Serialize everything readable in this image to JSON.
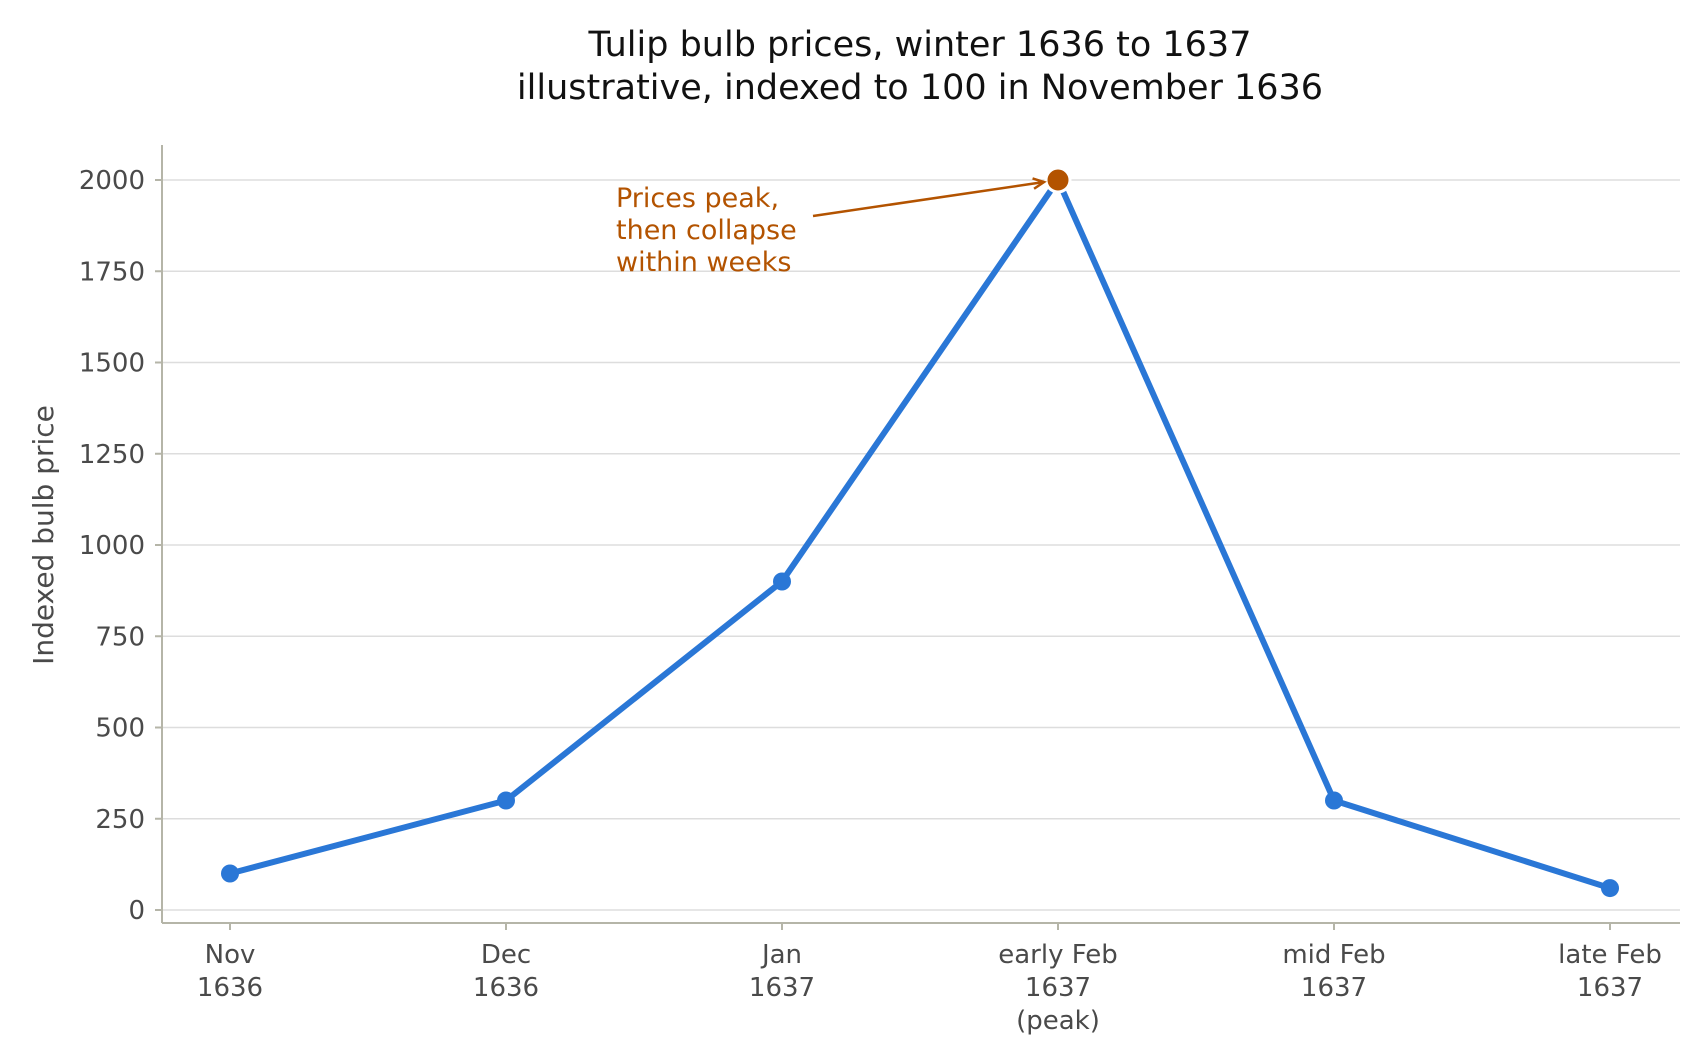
{
  "chart_data": {
    "type": "line",
    "title": "Tulip bulb prices, winter 1636 to 1637",
    "subtitle": "illustrative, indexed to 100 in November 1636",
    "xlabel": "",
    "ylabel": "Indexed bulb price",
    "categories": [
      [
        "Nov",
        "1636"
      ],
      [
        "Dec",
        "1636"
      ],
      [
        "Jan",
        "1637"
      ],
      [
        "early Feb",
        "1637",
        "(peak)"
      ],
      [
        "mid Feb",
        "1637"
      ],
      [
        "late Feb",
        "1637"
      ]
    ],
    "series": [
      {
        "values": [
          100,
          300,
          900,
          2000,
          300,
          60
        ],
        "color": "#2a77d6"
      }
    ],
    "ylim": [
      -40,
      2100
    ],
    "yticks": [
      0,
      250,
      500,
      750,
      1000,
      1250,
      1500,
      1750,
      2000
    ],
    "grid": "horizontal",
    "highlight": {
      "index": 3,
      "color": "#b35300"
    },
    "annotation": {
      "lines": [
        "Prices peak,",
        "then collapse",
        "within weeks"
      ],
      "target_index": 3,
      "color": "#b35300"
    }
  }
}
